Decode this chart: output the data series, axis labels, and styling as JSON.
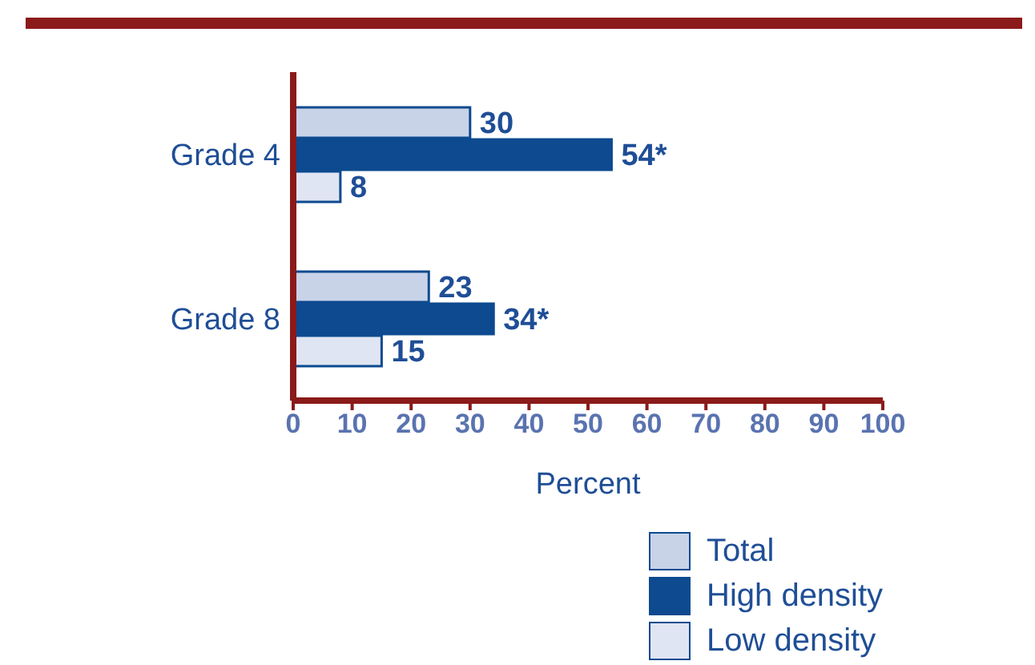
{
  "chart_data": {
    "type": "bar",
    "orientation": "horizontal",
    "categories": [
      "Grade 4",
      "Grade 8"
    ],
    "series": [
      {
        "name": "Total",
        "color": "#c9d3e8",
        "values": [
          30,
          23
        ],
        "value_labels": [
          "30",
          "23"
        ]
      },
      {
        "name": "High density",
        "color": "#0d4a8f",
        "values": [
          54,
          34
        ],
        "value_labels": [
          "54*",
          "34*"
        ]
      },
      {
        "name": "Low density",
        "color": "#dfe5f2",
        "values": [
          8,
          15
        ],
        "value_labels": [
          "8",
          "15"
        ]
      }
    ],
    "xlabel": "Percent",
    "xlim": [
      0,
      100
    ],
    "xticks": [
      0,
      10,
      20,
      30,
      40,
      50,
      60,
      70,
      80,
      90,
      100
    ],
    "grid": false,
    "legend": "bottom right"
  }
}
